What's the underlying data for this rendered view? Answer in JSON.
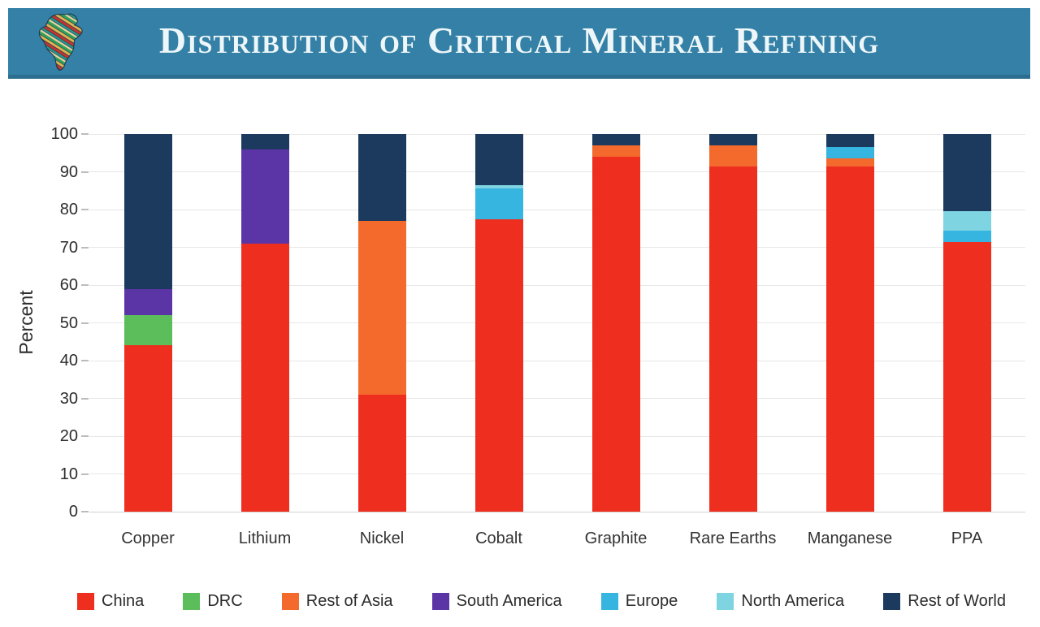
{
  "header": {
    "title": "Distribution of Critical Mineral Refining",
    "logo": "africa-stripes-logo",
    "background": "#3480A6",
    "border_color": "#2C6E90",
    "title_color": "#EDF6F8"
  },
  "chart_data": {
    "type": "bar",
    "stacked": true,
    "title": "Distribution of Critical Mineral Refining",
    "categories": [
      "Copper",
      "Lithium",
      "Nickel",
      "Cobalt",
      "Graphite",
      "Rare Earths",
      "Manganese",
      "PPA"
    ],
    "series": [
      {
        "name": "China",
        "color": "#EE2E1E",
        "values": [
          44,
          71,
          31,
          77.5,
          94,
          91.5,
          91.5,
          71.5
        ]
      },
      {
        "name": "DRC",
        "color": "#5CBE5A",
        "values": [
          8,
          0,
          0,
          0,
          0,
          0,
          0,
          0
        ]
      },
      {
        "name": "Rest of Asia",
        "color": "#F4692C",
        "values": [
          0,
          0,
          46,
          0,
          3,
          5.5,
          2,
          0
        ]
      },
      {
        "name": "South America",
        "color": "#5B35A5",
        "values": [
          7,
          25,
          0,
          0,
          0,
          0,
          0,
          0
        ]
      },
      {
        "name": "Europe",
        "color": "#35B5E0",
        "values": [
          0,
          0,
          0,
          8,
          0,
          0,
          3,
          3
        ]
      },
      {
        "name": "North America",
        "color": "#7FD4E2",
        "values": [
          0,
          0,
          0,
          1,
          0,
          0,
          0,
          5
        ]
      },
      {
        "name": "Rest of World",
        "color": "#1B3A5E",
        "values": [
          41,
          4,
          23,
          13.5,
          3,
          3,
          3.5,
          20.5
        ]
      }
    ],
    "xlabel": "",
    "ylabel": "Percent",
    "ylim": [
      0,
      100
    ],
    "yticks": [
      0,
      10,
      20,
      30,
      40,
      50,
      60,
      70,
      80,
      90,
      100
    ],
    "grid": true,
    "legend_position": "bottom"
  }
}
